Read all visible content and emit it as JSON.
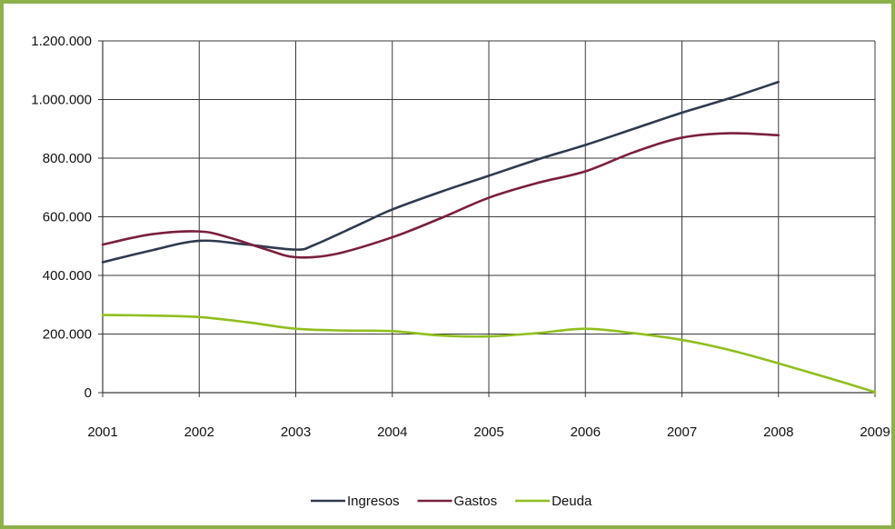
{
  "chart_data": {
    "type": "line",
    "title": "",
    "xlabel": "",
    "ylabel": "",
    "x": [
      2001,
      2002,
      2003,
      2004,
      2005,
      2006,
      2007,
      2008,
      2009
    ],
    "xlim": [
      2001,
      2009
    ],
    "ylim": [
      0,
      1200000
    ],
    "y_ticks": [
      "0",
      "200.000",
      "400.000",
      "600.000",
      "800.000",
      "1.000.000",
      "1.200.000"
    ],
    "x_ticks": [
      "2001",
      "2002",
      "2003",
      "2004",
      "2005",
      "2006",
      "2007",
      "2008",
      "2009"
    ],
    "grid": true,
    "legend_position": "bottom",
    "series": [
      {
        "name": "Ingresos",
        "color": "#2f3a4f",
        "points": [
          [
            2001,
            445000
          ],
          [
            2001.5,
            485000
          ],
          [
            2002,
            518000
          ],
          [
            2002.5,
            505000
          ],
          [
            2003,
            488000
          ],
          [
            2003.2,
            505000
          ],
          [
            2003.7,
            580000
          ],
          [
            2004,
            625000
          ],
          [
            2004.5,
            685000
          ],
          [
            2005,
            740000
          ],
          [
            2005.5,
            795000
          ],
          [
            2006,
            845000
          ],
          [
            2006.5,
            900000
          ],
          [
            2007,
            955000
          ],
          [
            2007.5,
            1005000
          ],
          [
            2008,
            1060000
          ]
        ]
      },
      {
        "name": "Gastos",
        "color": "#7a1f3d",
        "points": [
          [
            2001,
            505000
          ],
          [
            2001.5,
            540000
          ],
          [
            2002,
            550000
          ],
          [
            2002.3,
            530000
          ],
          [
            2002.7,
            488000
          ],
          [
            2003,
            462000
          ],
          [
            2003.4,
            472000
          ],
          [
            2004,
            530000
          ],
          [
            2004.5,
            595000
          ],
          [
            2005,
            665000
          ],
          [
            2005.5,
            715000
          ],
          [
            2006,
            755000
          ],
          [
            2006.5,
            820000
          ],
          [
            2007,
            870000
          ],
          [
            2007.5,
            885000
          ],
          [
            2008,
            878000
          ]
        ]
      },
      {
        "name": "Deuda",
        "color": "#8fbf1f",
        "points": [
          [
            2001,
            265000
          ],
          [
            2001.5,
            263000
          ],
          [
            2002,
            258000
          ],
          [
            2002.5,
            240000
          ],
          [
            2003,
            218000
          ],
          [
            2003.5,
            212000
          ],
          [
            2004,
            210000
          ],
          [
            2004.5,
            195000
          ],
          [
            2005,
            192000
          ],
          [
            2005.5,
            203000
          ],
          [
            2006,
            218000
          ],
          [
            2006.5,
            203000
          ],
          [
            2007,
            180000
          ],
          [
            2007.5,
            145000
          ],
          [
            2008,
            100000
          ],
          [
            2008.5,
            52000
          ],
          [
            2009,
            2000
          ]
        ]
      }
    ]
  }
}
